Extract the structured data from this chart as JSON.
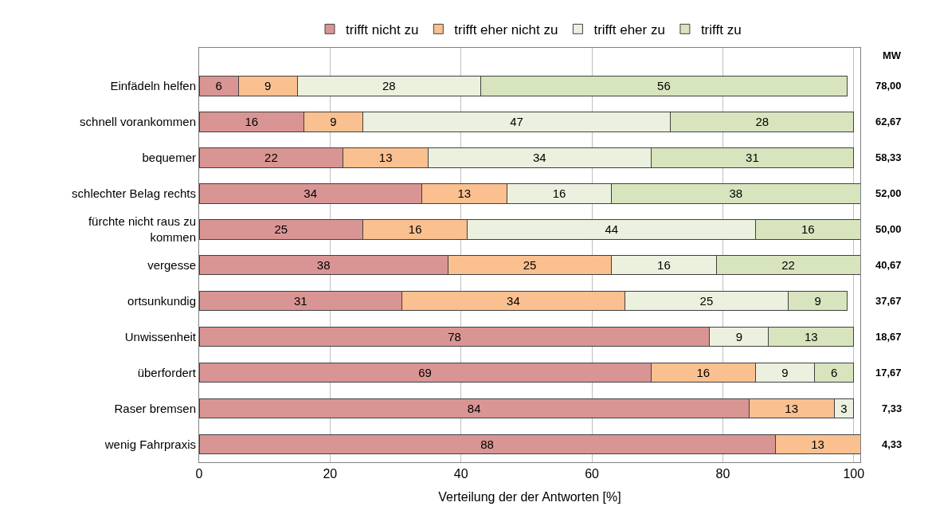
{
  "chart_data": {
    "type": "bar",
    "orientation": "horizontal",
    "stacked": true,
    "data_labels": true,
    "xlabel": "Verteilung der der Antworten [%]",
    "categories": [
      "Einfädeln helfen",
      "schnell vorankommen",
      "bequemer",
      "schlechter Belag rechts",
      "fürchte nicht raus zu kommen",
      "vergesse",
      "ortsunkundig",
      "Unwissenheit",
      "überfordert",
      "Raser bremsen",
      "wenig Fahrpraxis"
    ],
    "series": [
      {
        "name": "trifft nicht zu",
        "color": "#d99594",
        "values": [
          6,
          16,
          22,
          34,
          25,
          38,
          31,
          78,
          69,
          84,
          88
        ]
      },
      {
        "name": "trifft eher nicht zu",
        "color": "#fac090",
        "values": [
          9,
          9,
          13,
          13,
          16,
          25,
          34,
          null,
          16,
          13,
          13
        ]
      },
      {
        "name": "trifft eher zu",
        "color": "#ebf1de",
        "values": [
          28,
          47,
          34,
          16,
          44,
          16,
          25,
          9,
          9,
          3,
          null
        ]
      },
      {
        "name": "trifft zu",
        "color": "#d7e4bd",
        "values": [
          56,
          28,
          31,
          38,
          16,
          22,
          9,
          13,
          6,
          null,
          null
        ]
      }
    ],
    "xlim": [
      0,
      101
    ],
    "xticks": [
      0,
      20,
      40,
      60,
      80,
      100
    ],
    "grid": "x",
    "legend": "top",
    "annotations": [
      "MW",
      "78,00",
      "62,67",
      "58,33",
      "52,00",
      "50,00",
      "40,67",
      "37,67",
      "18,67",
      "17,67",
      "7,33",
      "4,33"
    ]
  }
}
